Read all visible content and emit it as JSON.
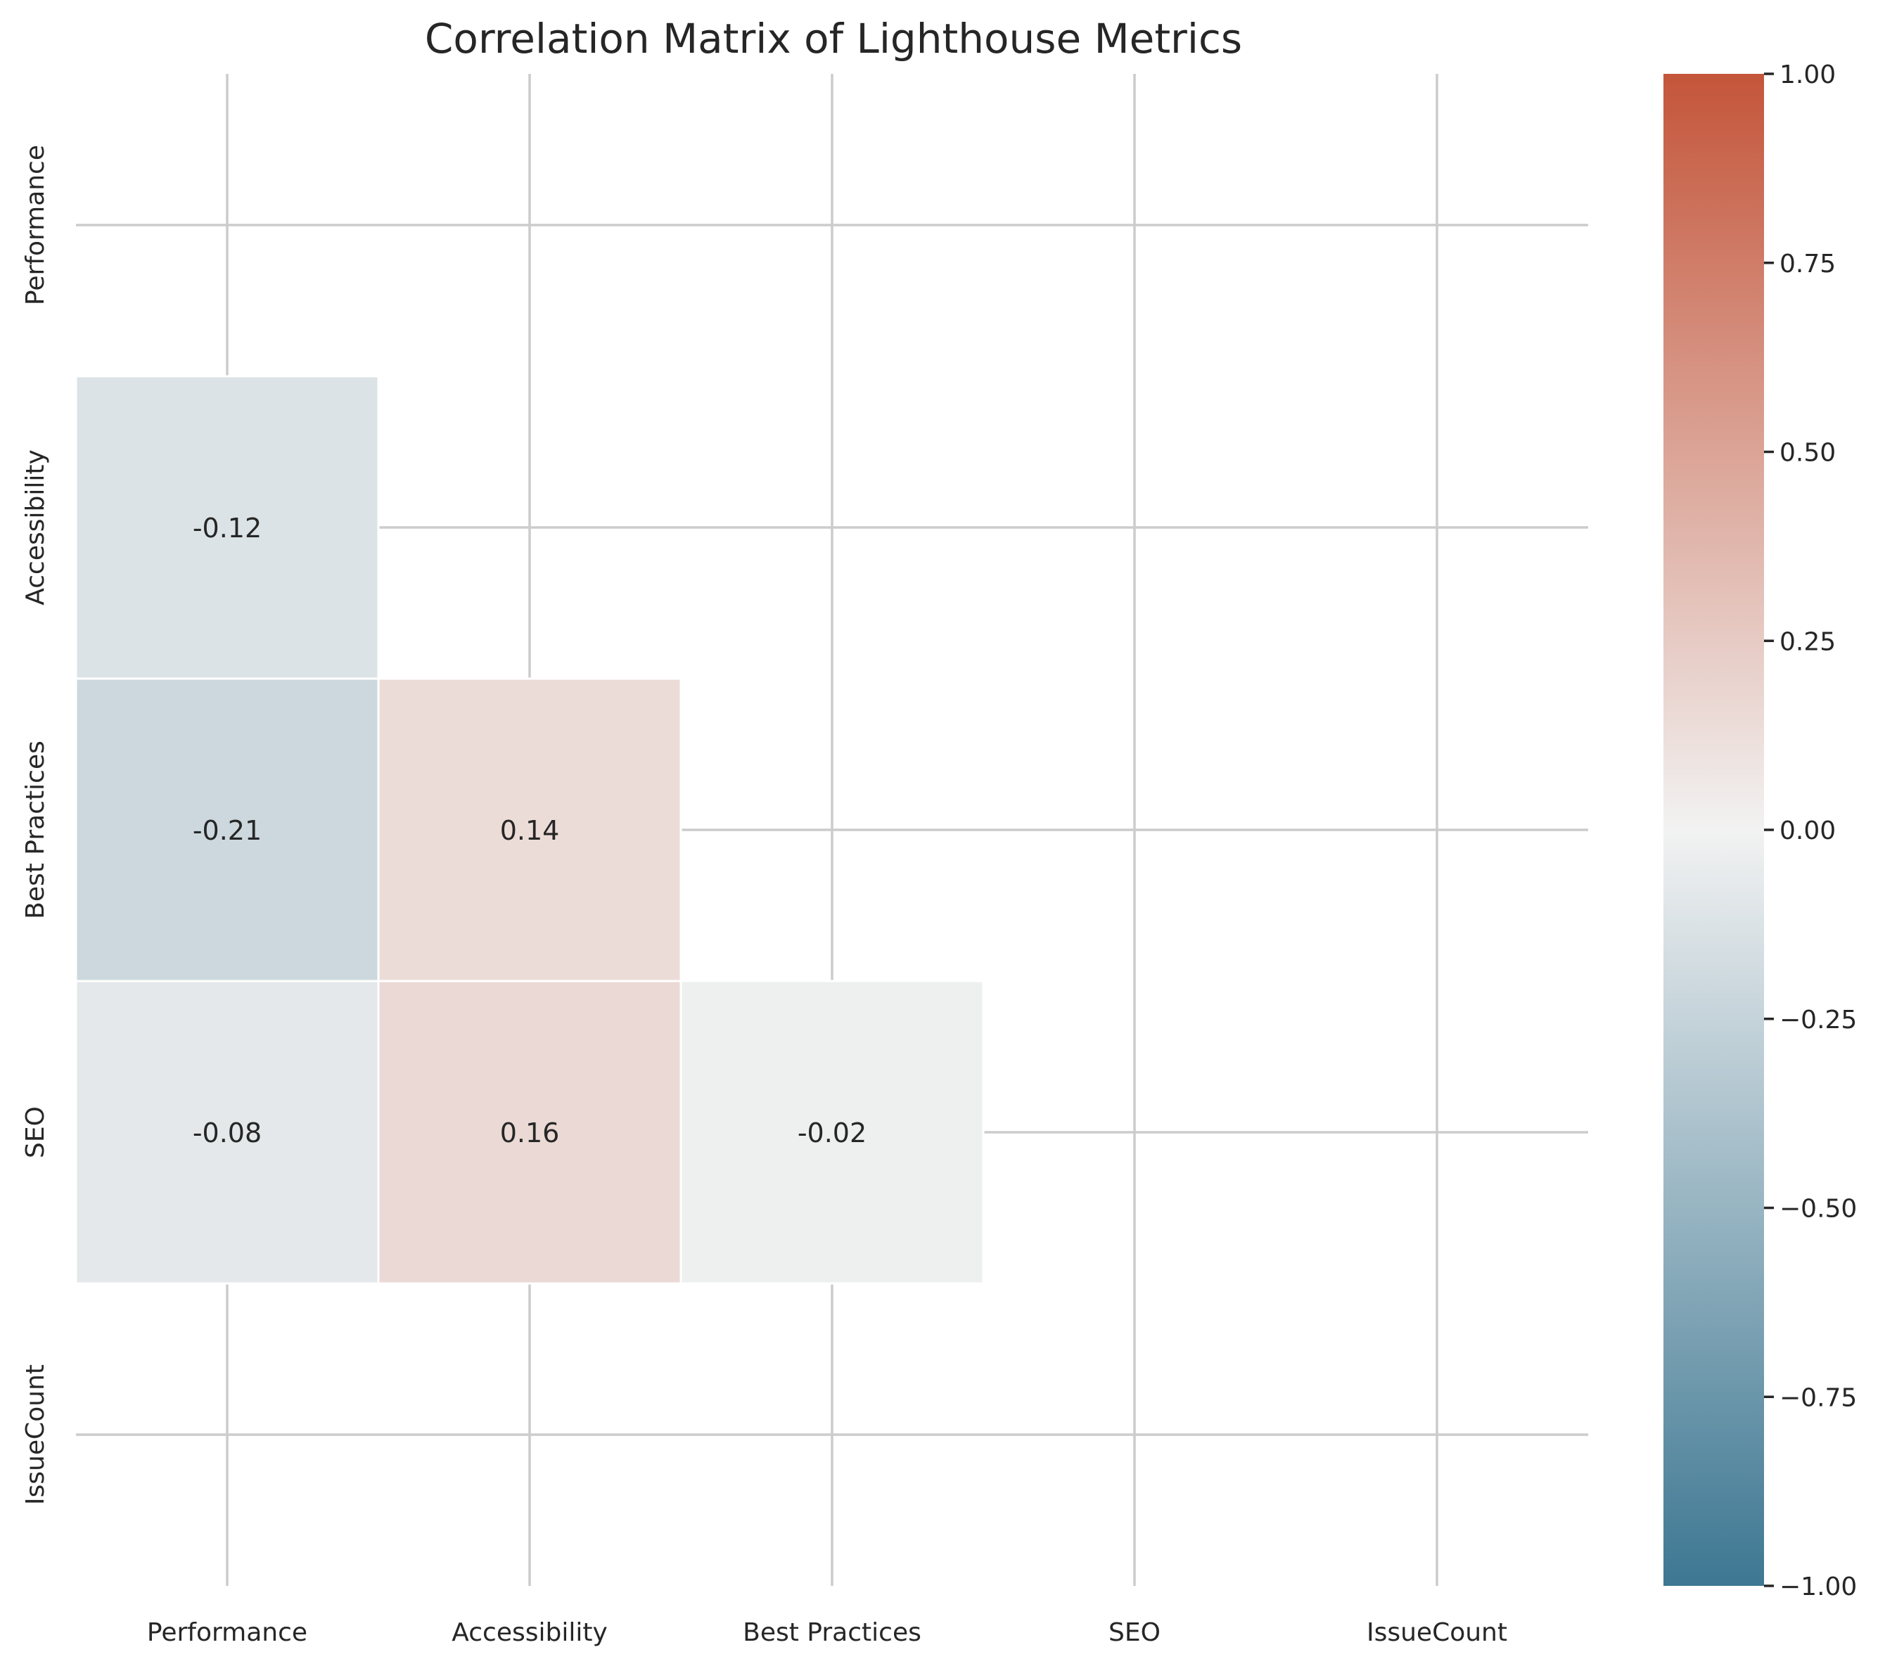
{
  "chart_data": {
    "type": "heatmap",
    "title": "Correlation Matrix of Lighthouse Metrics",
    "x_categories": [
      "Performance",
      "Accessibility",
      "Best Practices",
      "SEO",
      "IssueCount"
    ],
    "y_categories": [
      "Performance",
      "Accessibility",
      "Best Practices",
      "SEO",
      "IssueCount"
    ],
    "mask": "upper triangle including diagonal",
    "cells": [
      {
        "row": "Accessibility",
        "col": "Performance",
        "value": -0.12
      },
      {
        "row": "Best Practices",
        "col": "Performance",
        "value": -0.21
      },
      {
        "row": "Best Practices",
        "col": "Accessibility",
        "value": 0.14
      },
      {
        "row": "SEO",
        "col": "Performance",
        "value": -0.08
      },
      {
        "row": "SEO",
        "col": "Accessibility",
        "value": 0.16
      },
      {
        "row": "SEO",
        "col": "Best Practices",
        "value": -0.02
      }
    ],
    "colorbar": {
      "vmin": -1.0,
      "vmax": 1.0,
      "ticks": [
        "1.00",
        "0.75",
        "0.50",
        "0.25",
        "0.00",
        "−0.25",
        "−0.50",
        "−0.75",
        "−1.00"
      ],
      "low_color": "#3d7792",
      "mid_color": "#f2f2f2",
      "high_color": "#c4553a"
    },
    "grid": true
  }
}
